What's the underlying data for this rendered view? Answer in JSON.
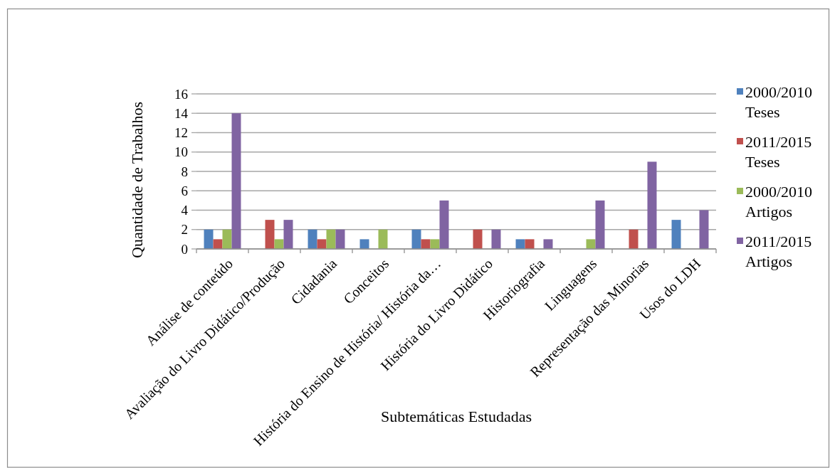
{
  "chart_data": {
    "type": "bar",
    "xlabel": "Subtemáticas Estudadas",
    "ylabel": "Quantidade de Trabalhos",
    "categories": [
      "Análise de conteúdo",
      "Avaliação do Livro Didático/Produção",
      "Cidadania",
      "Conceitos",
      "História do Ensino de História/ História da…",
      "História do Livro Didático",
      "Historiografia",
      "Linguagens",
      "Representação das Minorias",
      "Usos do LDH"
    ],
    "series": [
      {
        "name": "2000/2010 Teses",
        "color": "#4f81bd",
        "values": [
          2,
          null,
          2,
          1,
          2,
          null,
          1,
          null,
          null,
          3
        ]
      },
      {
        "name": "2011/2015 Teses",
        "color": "#c0504d",
        "values": [
          1,
          3,
          1,
          null,
          1,
          2,
          1,
          null,
          2,
          null
        ]
      },
      {
        "name": "2000/2010 Artigos",
        "color": "#9bbb59",
        "values": [
          2,
          1,
          2,
          2,
          1,
          null,
          null,
          1,
          null,
          null
        ]
      },
      {
        "name": "2011/2015 Artigos",
        "color": "#8064a2",
        "values": [
          14,
          3,
          2,
          null,
          5,
          2,
          1,
          5,
          9,
          4
        ]
      }
    ],
    "ylim": [
      0,
      16
    ],
    "yticks": [
      0,
      2,
      4,
      6,
      8,
      10,
      12,
      14,
      16
    ],
    "grid": "y",
    "legend": "right"
  }
}
